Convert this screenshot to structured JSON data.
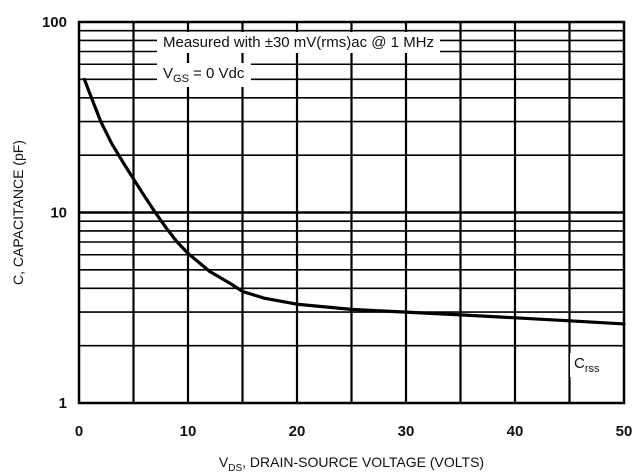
{
  "chart_data": {
    "type": "line",
    "title": "",
    "xlabel": {
      "pre": "V",
      "sub": "DS",
      "post": ", DRAIN-SOURCE VOLTAGE (VOLTS)"
    },
    "ylabel": "C, CAPACITANCE (pF)",
    "x_scale": "linear",
    "y_scale": "log",
    "xlim": [
      0,
      50
    ],
    "ylim": [
      1,
      100
    ],
    "grid": true,
    "x_ticks": [
      0,
      10,
      20,
      30,
      40,
      50
    ],
    "x_tick_labels": [
      "0",
      "10",
      "20",
      "30",
      "40",
      "50"
    ],
    "y_ticks": [
      1,
      10,
      100
    ],
    "y_tick_labels": [
      "1",
      "10",
      "100"
    ],
    "annotations": {
      "line1": {
        "text": "Measured with ±30 mV(rms)ac @ 1 MHz"
      },
      "line2": {
        "pre": "V",
        "sub": "GS",
        "post": " = 0 Vdc"
      }
    },
    "series": [
      {
        "name": {
          "pre": "C",
          "sub": "rss"
        },
        "x": [
          0.5,
          1,
          2,
          3,
          4,
          5,
          6,
          7,
          8,
          9,
          10,
          12,
          14,
          15,
          17,
          20,
          25,
          30,
          35,
          40,
          45,
          50
        ],
        "y": [
          50,
          42,
          30,
          23,
          18.5,
          15,
          12.2,
          10,
          8.3,
          7,
          6.1,
          4.9,
          4.2,
          3.85,
          3.55,
          3.3,
          3.1,
          3.0,
          2.9,
          2.8,
          2.7,
          2.6
        ]
      }
    ]
  }
}
